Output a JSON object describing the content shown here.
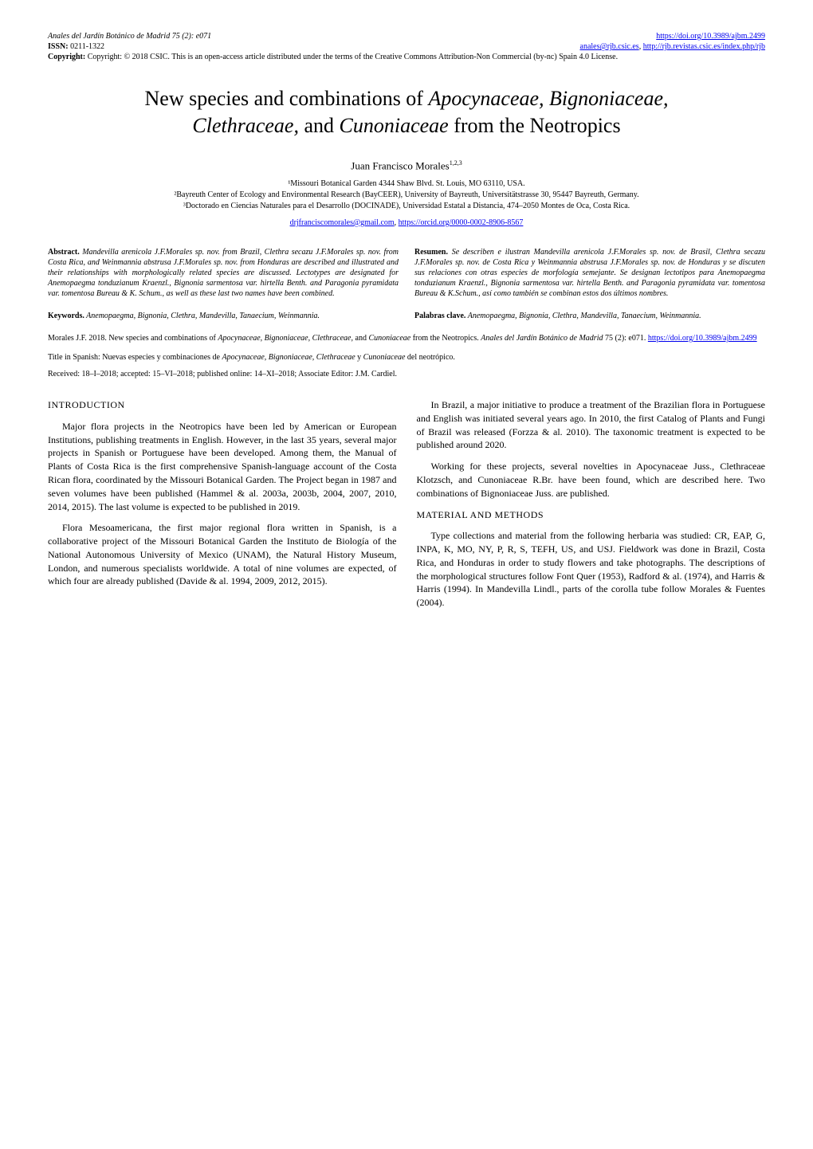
{
  "header": {
    "journal_ref": "Anales del Jardín Botánico de Madrid 75 (2): e071",
    "doi_url": "https://doi.org/10.3989/ajbm.2499",
    "issn_label": "ISSN:",
    "issn_value": "0211-1322",
    "email": "anales@rjb.csic.es",
    "journal_url": "http://rjb.revistas.csic.es/index.php/rjb",
    "copyright": "Copyright: © 2018 CSIC. This is an open-access article distributed under the terms of the Creative Commons Attribution-Non Commercial (by-nc) Spain 4.0 License."
  },
  "title": {
    "line1_pre": "New species and combinations of ",
    "line1_italic": "Apocynaceae, Bignoniaceae,",
    "line2_italic": "Clethraceae,",
    "line2_mid": " and ",
    "line2_italic2": "Cunoniaceae",
    "line2_post": " from the Neotropics"
  },
  "author": "Juan Francisco Morales",
  "author_sup": "1,2,3",
  "affiliations": {
    "a1": "¹Missouri Botanical Garden 4344 Shaw Blvd. St. Louis, MO 63110, USA.",
    "a2": "²Bayreuth Center of Ecology and Environmental Research (BayCEER), University of Bayreuth, Universitätstrasse 30, 95447 Bayreuth, Germany.",
    "a3": "³Doctorado en Ciencias Naturales para el Desarrollo (DOCINADE), Universidad Estatal a Distancia, 474–2050 Montes de Oca, Costa Rica."
  },
  "contact": {
    "email": "drjfranciscomorales@gmail.com",
    "orcid": "https://orcid.org/0000-0002-8906-8567"
  },
  "abstract_en": {
    "label": "Abstract.",
    "text": " Mandevilla arenicola J.F.Morales sp. nov. from Brazil, Clethra secazu J.F.Morales sp. nov. from Costa Rica, and Weinmannia abstrusa J.F.Morales sp. nov. from Honduras are described and illustrated and their relationships with morphologically related species are discussed. Lectotypes are designated for Anemopaegma tonduzianum Kraenzl., Bignonia sarmentosa var. hirtella Benth. and Paragonia pyramidata var. tomentosa Bureau & K. Schum., as well as these last two names have been combined."
  },
  "abstract_es": {
    "label": "Resumen.",
    "text": " Se describen e ilustran Mandevilla arenicola J.F.Morales sp. nov. de Brasil, Clethra secazu J.F.Morales sp. nov. de Costa Rica y Weinmannia abstrusa J.F.Morales sp. nov. de Honduras y se discuten sus relaciones con otras especies de morfología semejante. Se designan lectotipos para Anemopaegma tonduzianum Kraenzl., Bignonia sarmentosa var. hirtella Benth. and Paragonia pyramidata var. tomentosa Bureau & K.Schum., así como también se combinan estos dos últimos nombres."
  },
  "keywords_en": {
    "label": "Keywords.",
    "text": " Anemopaegma, Bignonia, Clethra, Mandevilla, Tanaecium, Weinmannia."
  },
  "keywords_es": {
    "label": "Palabras clave.",
    "text": " Anemopaegma, Bignonia, Clethra, Mandevilla, Tanaecium, Weinmannia."
  },
  "citation": {
    "text_pre": "Morales J.F. 2018. New species and combinations of ",
    "italic1": "Apocynaceae, Bignoniaceae, Clethraceae,",
    "text_mid": " and ",
    "italic2": "Cunoniaceae",
    "text_post": " from the Neotropics. ",
    "journal_italic": "Anales del Jardín Botánico de Madrid",
    "ref": " 75 (2): e071. ",
    "doi": "https://doi.org/10.3989/ajbm.2499"
  },
  "spanish_title": {
    "label": "Title in Spanish: ",
    "text_pre": "Nuevas especies y combinaciones de ",
    "italic": "Apocynaceae, Bignoniaceae, Clethraceae",
    "text_mid": " y ",
    "italic2": "Cunoniaceae",
    "text_post": " del neotrópico."
  },
  "dates": "Received: 18–I–2018; accepted: 15–VI–2018; published online: 14–XI–2018; Associate Editor: J.M. Cardiel.",
  "sections": {
    "intro_heading": "INTRODUCTION",
    "intro_p1": "Major flora projects in the Neotropics have been led by American or European Institutions, publishing treatments in English. However, in the last 35 years, several major projects in Spanish or Portuguese have been developed. Among them, the Manual of Plants of Costa Rica is the first comprehensive Spanish-language account of the Costa Rican flora, coordinated by the Missouri Botanical Garden. The Project began in 1987 and seven volumes have been published (Hammel & al. 2003a, 2003b, 2004, 2007, 2010, 2014, 2015). The last volume is expected to be published in 2019.",
    "intro_p2": "Flora Mesoamericana, the first major regional flora written in Spanish, is a collaborative project of the Missouri Botanical Garden the Instituto de Biología of the National Autonomous University of Mexico (UNAM), the Natural History Museum, London, and numerous specialists worldwide. A total of nine volumes are expected, of which four are already published (Davide & al. 1994, 2009, 2012, 2015).",
    "intro_p3": "In Brazil, a major initiative to produce a treatment of the Brazilian flora in Portuguese and English was initiated several years ago. In 2010, the first Catalog of Plants and Fungi of Brazil was released (Forzza & al. 2010). The taxonomic treatment is expected to be published around 2020.",
    "intro_p4": "Working for these projects, several novelties in Apocynaceae Juss., Clethraceae Klotzsch, and Cunoniaceae R.Br. have been found, which are described here. Two combinations of Bignoniaceae Juss. are published.",
    "methods_heading": "MATERIAL AND METHODS",
    "methods_p1": "Type collections and material from the following herbaria was studied: CR, EAP, G, INPA, K, MO, NY, P, R, S, TEFH, US, and USJ. Fieldwork was done in Brazil, Costa Rica, and Honduras in order to study flowers and take photographs. The descriptions of the morphological structures follow Font Quer (1953), Radford & al. (1974), and Harris & Harris (1994). In Mandevilla Lindl., parts of the corolla tube follow Morales & Fuentes (2004)."
  },
  "colors": {
    "link": "#0000ee",
    "text": "#000000",
    "background": "#ffffff"
  }
}
